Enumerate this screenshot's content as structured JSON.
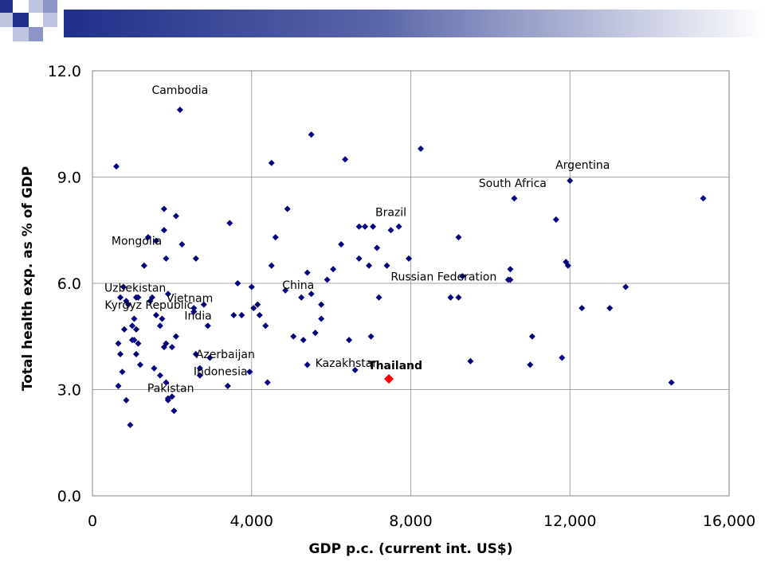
{
  "colors": {
    "banner_start": "#1f2f8a",
    "banner_end": "#ffffff",
    "point": "#00007f",
    "highlight": "#ff0000",
    "grid": "#a6a6a6"
  },
  "chart_data": {
    "type": "scatter",
    "xlabel": "GDP p.c. (current int. US$)",
    "ylabel": "Total health exp. as % of GDP",
    "xlim": [
      0,
      16000
    ],
    "ylim": [
      0,
      12
    ],
    "x_ticks": [
      0,
      4000,
      8000,
      12000,
      16000
    ],
    "x_tick_labels": [
      "0",
      "4,000",
      "8,000",
      "12,000",
      "16,000"
    ],
    "y_ticks": [
      0,
      3,
      6,
      9,
      12
    ],
    "y_tick_labels": [
      "0.0",
      "3.0",
      "6.0",
      "9.0",
      "12.0"
    ],
    "grid": true,
    "legend": "none",
    "highlight": {
      "label": "Thailand",
      "x": 7450,
      "y": 3.3
    },
    "labeled_points": [
      {
        "label": "Cambodia",
        "x": 2200,
        "y": 10.9
      },
      {
        "label": "Argentina",
        "x": 12000,
        "y": 8.9
      },
      {
        "label": "South Africa",
        "x": 10600,
        "y": 8.4
      },
      {
        "label": "Brazil",
        "x": 7500,
        "y": 7.5
      },
      {
        "label": "Mongolia",
        "x": 1800,
        "y": 7.5
      },
      {
        "label": "Uzbekistan",
        "x": 780,
        "y": 5.9
      },
      {
        "label": "Vietnam",
        "x": 1900,
        "y": 5.7
      },
      {
        "label": "Kyrgyz Republic",
        "x": 1150,
        "y": 5.6
      },
      {
        "label": "India",
        "x": 2550,
        "y": 5.2
      },
      {
        "label": "China",
        "x": 4850,
        "y": 5.8
      },
      {
        "label": "Russian Federation",
        "x": 10500,
        "y": 6.1
      },
      {
        "label": "Azerbaijan",
        "x": 2600,
        "y": 4.0
      },
      {
        "label": "Indonesia",
        "x": 2700,
        "y": 3.4
      },
      {
        "label": "Kazakhstan",
        "x": 6600,
        "y": 3.55
      },
      {
        "label": "Pakistan",
        "x": 1900,
        "y": 2.75
      }
    ],
    "points": [
      [
        600,
        9.3
      ],
      [
        650,
        3.1
      ],
      [
        650,
        4.3
      ],
      [
        700,
        4.0
      ],
      [
        700,
        5.6
      ],
      [
        750,
        3.5
      ],
      [
        800,
        4.7
      ],
      [
        850,
        2.7
      ],
      [
        850,
        5.5
      ],
      [
        900,
        5.4
      ],
      [
        950,
        2.0
      ],
      [
        1000,
        4.4
      ],
      [
        1000,
        4.8
      ],
      [
        1050,
        4.4
      ],
      [
        1050,
        5.0
      ],
      [
        1100,
        4.0
      ],
      [
        1100,
        4.7
      ],
      [
        1100,
        5.6
      ],
      [
        1150,
        4.3
      ],
      [
        1200,
        3.7
      ],
      [
        1300,
        6.5
      ],
      [
        1400,
        7.3
      ],
      [
        1450,
        5.5
      ],
      [
        1500,
        5.6
      ],
      [
        1550,
        3.6
      ],
      [
        1600,
        5.1
      ],
      [
        1600,
        7.2
      ],
      [
        1700,
        3.4
      ],
      [
        1700,
        4.8
      ],
      [
        1750,
        5.0
      ],
      [
        1800,
        4.2
      ],
      [
        1800,
        8.1
      ],
      [
        1850,
        3.2
      ],
      [
        1850,
        4.3
      ],
      [
        1850,
        6.7
      ],
      [
        1900,
        2.7
      ],
      [
        2000,
        2.8
      ],
      [
        2000,
        4.2
      ],
      [
        2050,
        2.4
      ],
      [
        2100,
        4.5
      ],
      [
        2100,
        7.9
      ],
      [
        2250,
        7.1
      ],
      [
        2550,
        5.3
      ],
      [
        2600,
        6.7
      ],
      [
        2700,
        3.6
      ],
      [
        2800,
        5.4
      ],
      [
        2900,
        4.8
      ],
      [
        2950,
        3.9
      ],
      [
        3400,
        3.1
      ],
      [
        3450,
        7.7
      ],
      [
        3550,
        5.1
      ],
      [
        3650,
        6.0
      ],
      [
        3750,
        5.1
      ],
      [
        3950,
        3.5
      ],
      [
        4000,
        5.9
      ],
      [
        4050,
        5.3
      ],
      [
        4150,
        5.4
      ],
      [
        4200,
        5.1
      ],
      [
        4350,
        4.8
      ],
      [
        4400,
        3.2
      ],
      [
        4500,
        6.5
      ],
      [
        4500,
        9.4
      ],
      [
        4600,
        7.3
      ],
      [
        4900,
        8.1
      ],
      [
        5050,
        4.5
      ],
      [
        5250,
        5.6
      ],
      [
        5300,
        4.4
      ],
      [
        5400,
        3.7
      ],
      [
        5400,
        6.3
      ],
      [
        5500,
        5.7
      ],
      [
        5500,
        10.2
      ],
      [
        5600,
        4.6
      ],
      [
        5750,
        5.4
      ],
      [
        5750,
        5.0
      ],
      [
        5900,
        6.1
      ],
      [
        6050,
        6.4
      ],
      [
        6250,
        7.1
      ],
      [
        6350,
        9.5
      ],
      [
        6450,
        4.4
      ],
      [
        6700,
        6.7
      ],
      [
        6700,
        7.6
      ],
      [
        6850,
        7.6
      ],
      [
        6950,
        6.5
      ],
      [
        7000,
        4.5
      ],
      [
        7050,
        7.6
      ],
      [
        7150,
        7.0
      ],
      [
        7200,
        5.6
      ],
      [
        7400,
        6.5
      ],
      [
        7700,
        7.6
      ],
      [
        7950,
        6.7
      ],
      [
        8250,
        9.8
      ],
      [
        9000,
        5.6
      ],
      [
        9200,
        7.3
      ],
      [
        9200,
        5.6
      ],
      [
        9300,
        6.2
      ],
      [
        9500,
        3.8
      ],
      [
        10450,
        6.1
      ],
      [
        10500,
        6.4
      ],
      [
        11000,
        3.7
      ],
      [
        11050,
        4.5
      ],
      [
        11650,
        7.8
      ],
      [
        11800,
        3.9
      ],
      [
        11900,
        6.6
      ],
      [
        11950,
        6.5
      ],
      [
        12300,
        5.3
      ],
      [
        13000,
        5.3
      ],
      [
        13400,
        5.9
      ],
      [
        14550,
        3.2
      ],
      [
        15350,
        8.4
      ]
    ]
  }
}
